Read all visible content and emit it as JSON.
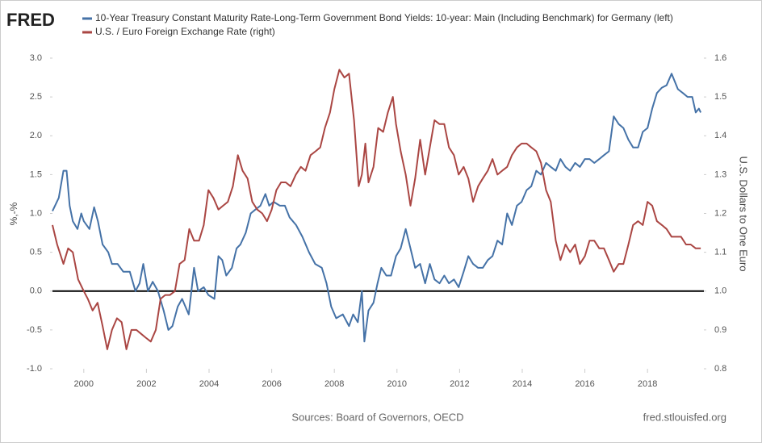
{
  "chart_data": {
    "type": "line",
    "logo": "FRED",
    "ylabel": "%,-%",
    "y2label": "U.S. Dollars to One Euro",
    "source": "Sources: Board of Governors, OECD",
    "url": "fred.stlouisfed.org",
    "xlim": [
      1999,
      2019.8
    ],
    "xticks": [
      2000,
      2002,
      2004,
      2006,
      2008,
      2010,
      2012,
      2014,
      2016,
      2018
    ],
    "ylim": [
      -1,
      3
    ],
    "yticks": [
      {
        "value": -1,
        "label": "-1.0"
      },
      -0.5,
      {
        "value": 0,
        "label": "0.0"
      },
      0.5,
      {
        "value": 1,
        "label": "1.0"
      },
      1.5,
      {
        "value": 2,
        "label": "2.0"
      },
      2.5,
      {
        "value": 3,
        "label": "3.0"
      }
    ],
    "y2lim": [
      0.8,
      1.6
    ],
    "y2ticks": [
      0.8,
      0.9,
      {
        "value": 1,
        "label": "1.0"
      },
      1.1,
      1.2,
      1.3,
      1.4,
      1.5,
      1.6
    ],
    "series": [
      {
        "name": "10-Year Treasury Constant Maturity Rate-Long-Term Government Bond Yields: 10-year: Main (Including Benchmark) for Germany (left)",
        "color": "#4572a7",
        "x": [
          1999.0,
          1999.2,
          1999.35,
          1999.45,
          1999.55,
          1999.65,
          1999.8,
          1999.92,
          2000.0,
          2000.18,
          2000.33,
          2000.45,
          2000.6,
          2000.78,
          2000.9,
          2001.08,
          2001.26,
          2001.47,
          2001.65,
          2001.78,
          2001.9,
          2002.05,
          2002.2,
          2002.37,
          2002.55,
          2002.7,
          2002.83,
          2003.0,
          2003.14,
          2003.35,
          2003.52,
          2003.65,
          2003.83,
          2003.98,
          2004.17,
          2004.3,
          2004.42,
          2004.55,
          2004.73,
          2004.88,
          2005.0,
          2005.17,
          2005.33,
          2005.48,
          2005.64,
          2005.8,
          2005.92,
          2006.06,
          2006.26,
          2006.42,
          2006.57,
          2006.78,
          2006.98,
          2007.19,
          2007.39,
          2007.6,
          2007.75,
          2007.9,
          2008.06,
          2008.27,
          2008.47,
          2008.6,
          2008.75,
          2008.88,
          2008.96,
          2009.09,
          2009.25,
          2009.38,
          2009.5,
          2009.66,
          2009.81,
          2009.97,
          2010.12,
          2010.28,
          2010.43,
          2010.58,
          2010.74,
          2010.9,
          2011.05,
          2011.2,
          2011.36,
          2011.51,
          2011.66,
          2011.82,
          2011.97,
          2012.13,
          2012.28,
          2012.43,
          2012.59,
          2012.74,
          2012.9,
          2013.05,
          2013.21,
          2013.36,
          2013.52,
          2013.67,
          2013.83,
          2013.98,
          2014.14,
          2014.29,
          2014.45,
          2014.6,
          2014.76,
          2014.91,
          2015.07,
          2015.22,
          2015.38,
          2015.53,
          2015.69,
          2015.84,
          2016.0,
          2016.15,
          2016.3,
          2016.46,
          2016.61,
          2016.77,
          2016.92,
          2017.08,
          2017.23,
          2017.39,
          2017.54,
          2017.7,
          2017.85,
          2018.0,
          2018.15,
          2018.3,
          2018.46,
          2018.61,
          2018.77,
          2018.87,
          2018.97,
          2019.13,
          2019.28,
          2019.43,
          2019.54,
          2019.64,
          2019.7
        ],
        "values": [
          1.03,
          1.2,
          1.55,
          1.55,
          1.1,
          0.9,
          0.8,
          1.0,
          0.9,
          0.8,
          1.08,
          0.9,
          0.6,
          0.5,
          0.35,
          0.35,
          0.25,
          0.25,
          0.0,
          0.1,
          0.35,
          0.0,
          0.12,
          0.0,
          -0.25,
          -0.5,
          -0.45,
          -0.2,
          -0.1,
          -0.3,
          0.3,
          0.0,
          0.05,
          -0.05,
          -0.1,
          0.45,
          0.4,
          0.2,
          0.3,
          0.55,
          0.6,
          0.75,
          1.0,
          1.05,
          1.1,
          1.25,
          1.1,
          1.15,
          1.1,
          1.1,
          0.95,
          0.85,
          0.7,
          0.5,
          0.35,
          0.3,
          0.1,
          -0.2,
          -0.35,
          -0.3,
          -0.45,
          -0.3,
          -0.4,
          0.0,
          -0.65,
          -0.25,
          -0.15,
          0.1,
          0.3,
          0.2,
          0.2,
          0.45,
          0.55,
          0.8,
          0.55,
          0.3,
          0.35,
          0.1,
          0.35,
          0.15,
          0.1,
          0.2,
          0.1,
          0.15,
          0.05,
          0.25,
          0.45,
          0.35,
          0.3,
          0.3,
          0.4,
          0.45,
          0.65,
          0.6,
          1.0,
          0.85,
          1.1,
          1.15,
          1.3,
          1.35,
          1.55,
          1.5,
          1.65,
          1.6,
          1.55,
          1.7,
          1.6,
          1.55,
          1.65,
          1.6,
          1.7,
          1.7,
          1.65,
          1.7,
          1.75,
          1.8,
          2.25,
          2.15,
          2.1,
          1.95,
          1.85,
          1.85,
          2.05,
          2.1,
          2.35,
          2.55,
          2.62,
          2.65,
          2.8,
          2.7,
          2.6,
          2.55,
          2.5,
          2.5,
          2.3,
          2.35,
          2.3
        ]
      },
      {
        "name": "U.S. / Euro Foreign Exchange Rate (right)",
        "color": "#aa4643",
        "axis": "y2",
        "x": [
          1999.0,
          1999.15,
          1999.35,
          1999.5,
          1999.65,
          1999.82,
          2000.0,
          2000.13,
          2000.28,
          2000.44,
          2000.6,
          2000.75,
          2000.9,
          2001.06,
          2001.21,
          2001.36,
          2001.52,
          2001.68,
          2001.83,
          2001.98,
          2002.14,
          2002.3,
          2002.45,
          2002.6,
          2002.75,
          2002.91,
          2003.06,
          2003.22,
          2003.37,
          2003.52,
          2003.68,
          2003.83,
          2003.98,
          2004.14,
          2004.3,
          2004.45,
          2004.6,
          2004.76,
          2004.92,
          2005.07,
          2005.23,
          2005.38,
          2005.54,
          2005.7,
          2005.85,
          2006.0,
          2006.15,
          2006.3,
          2006.45,
          2006.6,
          2006.77,
          2006.93,
          2007.08,
          2007.24,
          2007.4,
          2007.55,
          2007.7,
          2007.86,
          2008.0,
          2008.16,
          2008.32,
          2008.47,
          2008.63,
          2008.78,
          2008.88,
          2008.99,
          2009.09,
          2009.25,
          2009.4,
          2009.56,
          2009.71,
          2009.87,
          2009.97,
          2010.12,
          2010.28,
          2010.43,
          2010.58,
          2010.74,
          2010.9,
          2011.05,
          2011.2,
          2011.36,
          2011.51,
          2011.66,
          2011.82,
          2011.97,
          2012.13,
          2012.28,
          2012.43,
          2012.59,
          2012.74,
          2012.9,
          2013.05,
          2013.21,
          2013.36,
          2013.52,
          2013.67,
          2013.83,
          2013.98,
          2014.14,
          2014.29,
          2014.45,
          2014.6,
          2014.76,
          2014.91,
          2015.07,
          2015.22,
          2015.38,
          2015.53,
          2015.69,
          2015.84,
          2016.0,
          2016.15,
          2016.3,
          2016.46,
          2016.61,
          2016.77,
          2016.92,
          2017.08,
          2017.23,
          2017.39,
          2017.54,
          2017.7,
          2017.85,
          2018.0,
          2018.15,
          2018.3,
          2018.46,
          2018.61,
          2018.77,
          2018.92,
          2019.07,
          2019.23,
          2019.38,
          2019.54,
          2019.7
        ],
        "values": [
          1.17,
          1.12,
          1.07,
          1.11,
          1.1,
          1.03,
          1.0,
          0.98,
          0.95,
          0.97,
          0.91,
          0.85,
          0.9,
          0.93,
          0.92,
          0.85,
          0.9,
          0.9,
          0.89,
          0.88,
          0.87,
          0.9,
          0.98,
          0.99,
          0.99,
          1.0,
          1.07,
          1.08,
          1.16,
          1.13,
          1.13,
          1.17,
          1.26,
          1.24,
          1.21,
          1.22,
          1.23,
          1.27,
          1.35,
          1.31,
          1.29,
          1.23,
          1.21,
          1.2,
          1.18,
          1.21,
          1.26,
          1.28,
          1.28,
          1.27,
          1.3,
          1.32,
          1.31,
          1.35,
          1.36,
          1.37,
          1.42,
          1.46,
          1.52,
          1.57,
          1.55,
          1.56,
          1.44,
          1.27,
          1.3,
          1.38,
          1.28,
          1.32,
          1.42,
          1.41,
          1.46,
          1.5,
          1.43,
          1.36,
          1.3,
          1.22,
          1.29,
          1.39,
          1.3,
          1.37,
          1.44,
          1.43,
          1.43,
          1.37,
          1.35,
          1.3,
          1.32,
          1.29,
          1.23,
          1.27,
          1.29,
          1.31,
          1.34,
          1.3,
          1.31,
          1.32,
          1.35,
          1.37,
          1.38,
          1.38,
          1.37,
          1.36,
          1.33,
          1.26,
          1.23,
          1.13,
          1.08,
          1.12,
          1.1,
          1.12,
          1.07,
          1.09,
          1.13,
          1.13,
          1.11,
          1.11,
          1.08,
          1.05,
          1.07,
          1.07,
          1.12,
          1.17,
          1.18,
          1.17,
          1.23,
          1.22,
          1.18,
          1.17,
          1.16,
          1.14,
          1.14,
          1.14,
          1.12,
          1.12,
          1.11,
          1.11
        ]
      }
    ]
  }
}
